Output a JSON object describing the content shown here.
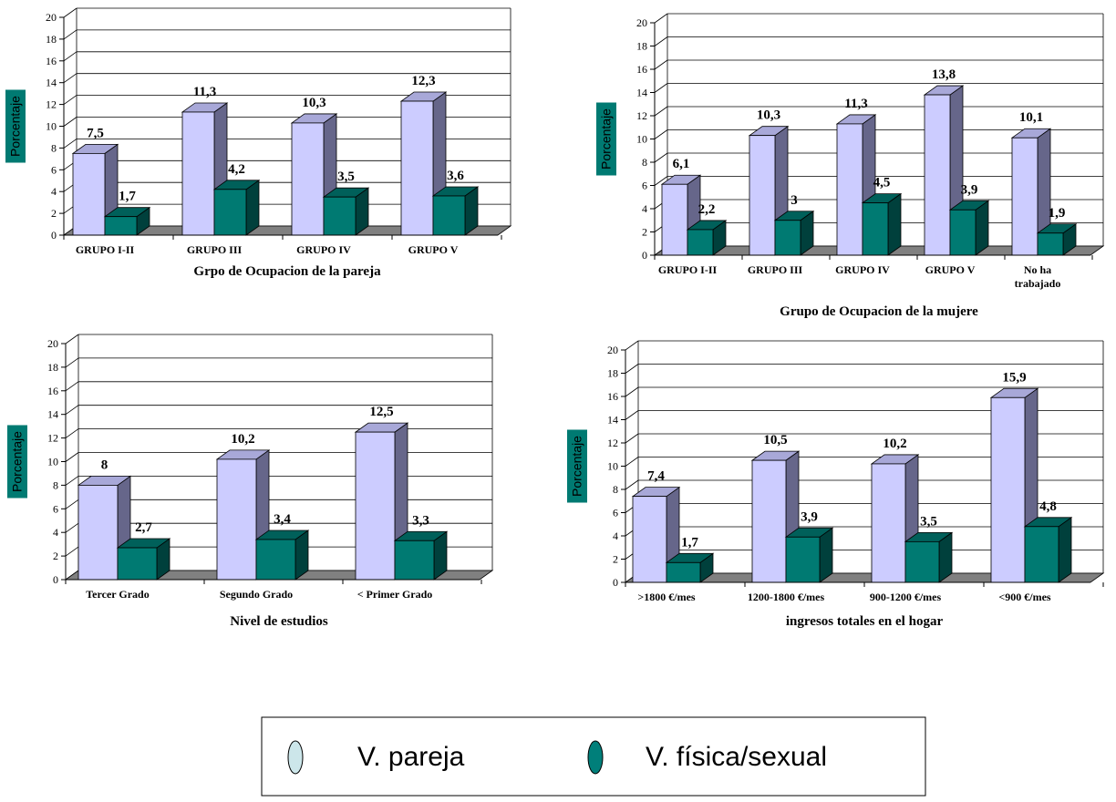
{
  "chart_data": [
    {
      "type": "bar",
      "xlabel": "Grpo de Ocupacion de la pareja",
      "ylabel": "Porcentaje",
      "ylim": [
        0,
        20
      ],
      "yticks": [
        "0",
        "2",
        "4",
        "6",
        "8",
        "10",
        "12",
        "14",
        "16",
        "18",
        "20"
      ],
      "categories": [
        "GRUPO I-II",
        "GRUPO III",
        "GRUPO IV",
        "GRUPO V"
      ],
      "series": [
        {
          "name": "V. pareja",
          "values": [
            7.5,
            11.3,
            10.3,
            12.3
          ],
          "labels": [
            "7,5",
            "11,3",
            "10,3",
            "12,3"
          ]
        },
        {
          "name": "V. física/sexual",
          "values": [
            1.7,
            4.2,
            3.5,
            3.6
          ],
          "labels": [
            "1,7",
            "4,2",
            "3,5",
            "3,6"
          ]
        }
      ],
      "grid": true
    },
    {
      "type": "bar",
      "xlabel": "Grupo de Ocupacion de la mujere",
      "ylabel": "Porcentaje",
      "ylim": [
        0,
        20
      ],
      "yticks": [
        "0",
        "2",
        "4",
        "6",
        "8",
        "10",
        "12",
        "14",
        "16",
        "18",
        "20"
      ],
      "categories": [
        "GRUPO I-II",
        "GRUPO III",
        "GRUPO IV",
        "GRUPO V",
        "No ha trabajado"
      ],
      "series": [
        {
          "name": "V. pareja",
          "values": [
            6.1,
            10.3,
            11.3,
            13.8,
            10.1
          ],
          "labels": [
            "6,1",
            "10,3",
            "11,3",
            "13,8",
            "10,1"
          ]
        },
        {
          "name": "V. física/sexual",
          "values": [
            2.2,
            3,
            4.5,
            3.9,
            1.9
          ],
          "labels": [
            "2,2",
            "3",
            "4,5",
            "3,9",
            "1,9"
          ]
        }
      ],
      "grid": true
    },
    {
      "type": "bar",
      "xlabel": "Nivel de estudios",
      "ylabel": "Porcentaje",
      "ylim": [
        0,
        20
      ],
      "yticks": [
        "0",
        "2",
        "4",
        "6",
        "8",
        "10",
        "12",
        "14",
        "16",
        "18",
        "20"
      ],
      "categories": [
        "Tercer Grado",
        "Segundo Grado",
        "< Primer Grado"
      ],
      "series": [
        {
          "name": "V. pareja",
          "values": [
            8,
            10.2,
            12.5
          ],
          "labels": [
            "8",
            "10,2",
            "12,5"
          ]
        },
        {
          "name": "V. física/sexual",
          "values": [
            2.7,
            3.4,
            3.3
          ],
          "labels": [
            "2,7",
            "3,4",
            "3,3"
          ]
        }
      ],
      "grid": true
    },
    {
      "type": "bar",
      "xlabel": "ingresos totales en el hogar",
      "ylabel": "Porcentaje",
      "ylim": [
        0,
        20
      ],
      "yticks": [
        "0",
        "2",
        "4",
        "6",
        "8",
        "10",
        "12",
        "14",
        "16",
        "18",
        "20"
      ],
      "categories": [
        ">1800 €/mes",
        "1200-1800 €/mes",
        "900-1200 €/mes",
        "<900 €/mes"
      ],
      "series": [
        {
          "name": "V. pareja",
          "values": [
            7.4,
            10.5,
            10.2,
            15.9
          ],
          "labels": [
            "7,4",
            "10,5",
            "10,2",
            "15,9"
          ]
        },
        {
          "name": "V. física/sexual",
          "values": [
            1.7,
            3.9,
            3.5,
            4.8
          ],
          "labels": [
            "1,7",
            "3,9",
            "3,5",
            "4,8"
          ]
        }
      ],
      "grid": true
    }
  ],
  "legend": {
    "items": [
      {
        "label": "V. pareja",
        "color": "#cce6ea"
      },
      {
        "label": "V. física/sexual",
        "color": "#007f7a"
      }
    ]
  },
  "colors": {
    "pareja_front": "#ccccff",
    "pareja_side": "#66668a",
    "pareja_top": "#a8a8d8",
    "fisica_front": "#007a72",
    "fisica_side": "#00403c",
    "fisica_top": "#00605a",
    "ylabel_bg": "#007a72",
    "floor": "#808080"
  }
}
